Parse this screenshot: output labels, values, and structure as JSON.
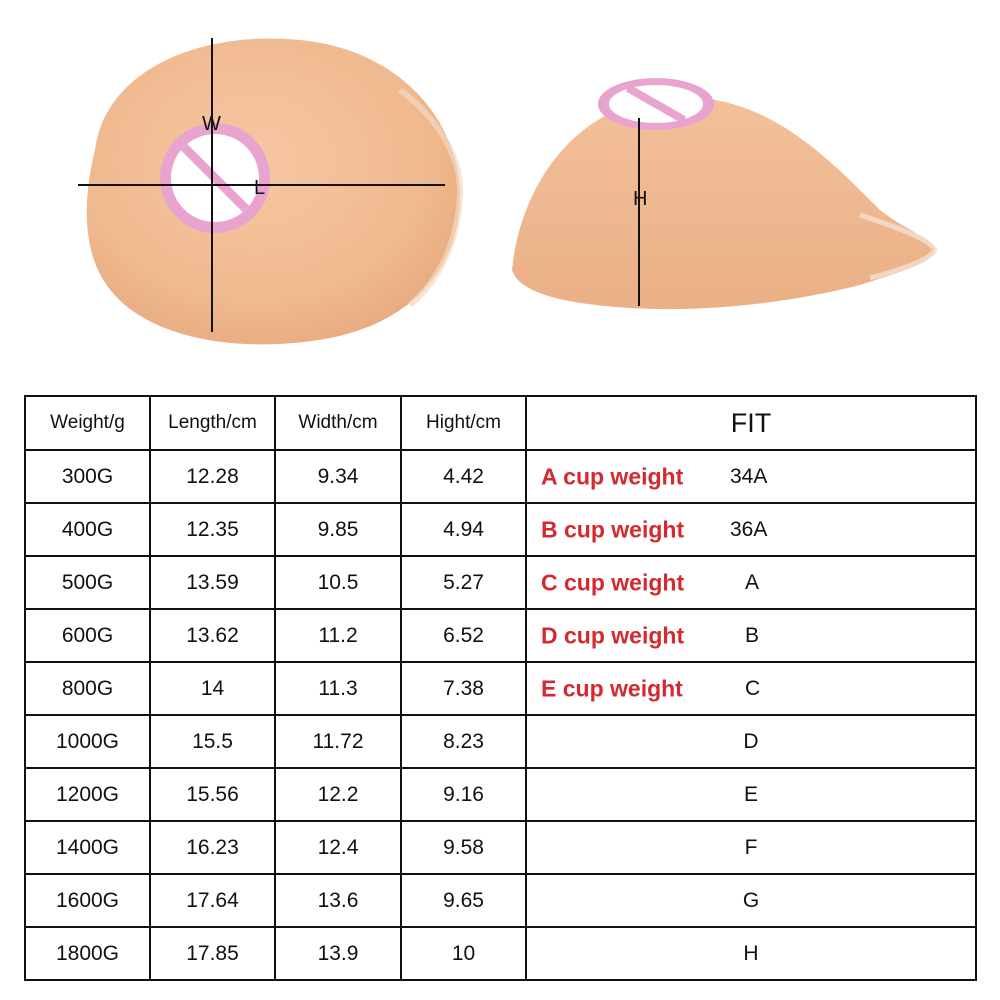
{
  "diagram": {
    "width_label": "W",
    "length_label": "L",
    "height_label": "H",
    "colors": {
      "skin": "#f0b98f",
      "skin_shadow": "#e4a67a",
      "nipple_ring": "#e8a4cf",
      "nipple_fill": "#ffffff"
    },
    "icons": [
      "top-view-breast-form",
      "side-view-breast-form",
      "censored-nipple-icon"
    ]
  },
  "table": {
    "headers": {
      "weight": "Weight/g",
      "length": "Length/cm",
      "width": "Width/cm",
      "height": "Hight/cm",
      "fit": "FIT"
    },
    "rows": [
      {
        "weight": "300G",
        "length": "12.28",
        "width": "9.34",
        "height": "4.42",
        "cup": "A cup weight",
        "fit": "34A"
      },
      {
        "weight": "400G",
        "length": "12.35",
        "width": "9.85",
        "height": "4.94",
        "cup": "B cup weight",
        "fit": "36A"
      },
      {
        "weight": "500G",
        "length": "13.59",
        "width": "10.5",
        "height": "5.27",
        "cup": "C cup weight",
        "fit": "A"
      },
      {
        "weight": "600G",
        "length": "13.62",
        "width": "11.2",
        "height": "6.52",
        "cup": "D cup weight",
        "fit": "B"
      },
      {
        "weight": "800G",
        "length": "14",
        "width": "11.3",
        "height": "7.38",
        "cup": "E cup weight",
        "fit": "C"
      },
      {
        "weight": "1000G",
        "length": "15.5",
        "width": "11.72",
        "height": "8.23",
        "cup": "",
        "fit": "D"
      },
      {
        "weight": "1200G",
        "length": "15.56",
        "width": "12.2",
        "height": "9.16",
        "cup": "",
        "fit": "E"
      },
      {
        "weight": "1400G",
        "length": "16.23",
        "width": "12.4",
        "height": "9.58",
        "cup": "",
        "fit": "F"
      },
      {
        "weight": "1600G",
        "length": "17.64",
        "width": "13.6",
        "height": "9.65",
        "cup": "",
        "fit": "G"
      },
      {
        "weight": "1800G",
        "length": "17.85",
        "width": "13.9",
        "height": "10",
        "cup": "",
        "fit": "H"
      }
    ],
    "colors": {
      "border": "#111111",
      "cup_label": "#d42a2f"
    }
  }
}
